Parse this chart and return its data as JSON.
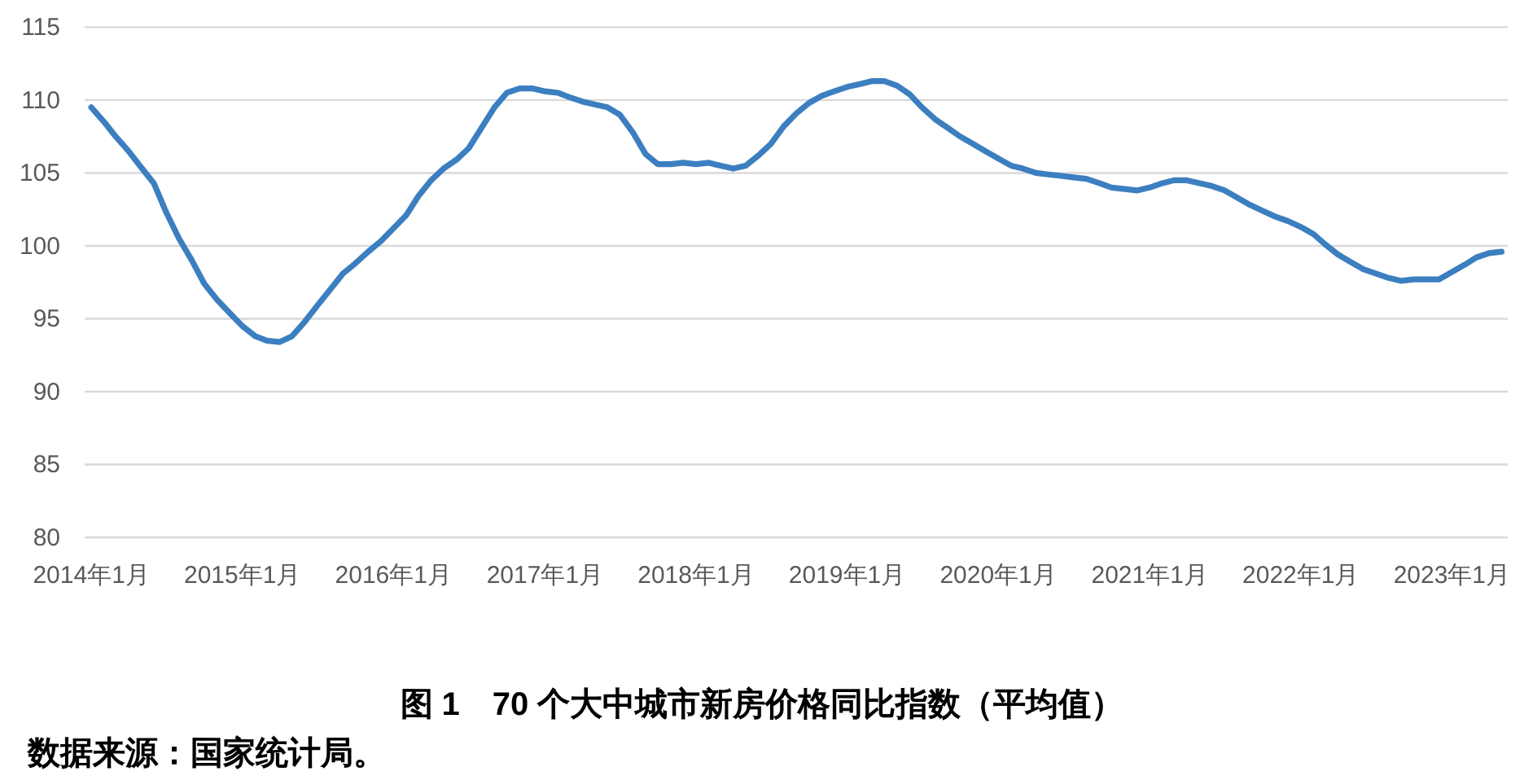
{
  "chart_data": {
    "type": "line",
    "title": "图 1　70 个大中城市新房价格同比指数（平均值）",
    "annotations": [
      "数据来源：国家统计局。"
    ],
    "x": [
      "2014-01",
      "2014-02",
      "2014-03",
      "2014-04",
      "2014-05",
      "2014-06",
      "2014-07",
      "2014-08",
      "2014-09",
      "2014-10",
      "2014-11",
      "2014-12",
      "2015-01",
      "2015-02",
      "2015-03",
      "2015-04",
      "2015-05",
      "2015-06",
      "2015-07",
      "2015-08",
      "2015-09",
      "2015-10",
      "2015-11",
      "2015-12",
      "2016-01",
      "2016-02",
      "2016-03",
      "2016-04",
      "2016-05",
      "2016-06",
      "2016-07",
      "2016-08",
      "2016-09",
      "2016-10",
      "2016-11",
      "2016-12",
      "2017-01",
      "2017-02",
      "2017-03",
      "2017-04",
      "2017-05",
      "2017-06",
      "2017-07",
      "2017-08",
      "2017-09",
      "2017-10",
      "2017-11",
      "2017-12",
      "2018-01",
      "2018-02",
      "2018-03",
      "2018-04",
      "2018-05",
      "2018-06",
      "2018-07",
      "2018-08",
      "2018-09",
      "2018-10",
      "2018-11",
      "2018-12",
      "2019-01",
      "2019-02",
      "2019-03",
      "2019-04",
      "2019-05",
      "2019-06",
      "2019-07",
      "2019-08",
      "2019-09",
      "2019-10",
      "2019-11",
      "2019-12",
      "2020-01",
      "2020-02",
      "2020-03",
      "2020-04",
      "2020-05",
      "2020-06",
      "2020-07",
      "2020-08",
      "2020-09",
      "2020-10",
      "2020-11",
      "2020-12",
      "2021-01",
      "2021-02",
      "2021-03",
      "2021-04",
      "2021-05",
      "2021-06",
      "2021-07",
      "2021-08",
      "2021-09",
      "2021-10",
      "2021-11",
      "2021-12",
      "2022-01",
      "2022-02",
      "2022-03",
      "2022-04",
      "2022-05",
      "2022-06",
      "2022-07",
      "2022-08",
      "2022-09",
      "2022-10",
      "2022-11",
      "2022-12",
      "2023-01",
      "2023-02",
      "2023-03",
      "2023-04",
      "2023-05"
    ],
    "series": [
      {
        "color": "#3c7fc0",
        "values": [
          109.5,
          108.5,
          107.5,
          106.5,
          105.4,
          104.3,
          102.3,
          100.5,
          99.0,
          97.4,
          96.3,
          95.4,
          94.5,
          93.8,
          93.5,
          93.4,
          93.8,
          94.8,
          95.9,
          97.0,
          98.1,
          98.8,
          99.6,
          100.3,
          101.2,
          102.1,
          103.4,
          104.5,
          105.3,
          105.9,
          106.7,
          108.1,
          109.5,
          110.5,
          110.8,
          110.8,
          110.6,
          110.5,
          110.2,
          109.9,
          109.7,
          109.5,
          109.0,
          107.8,
          106.3,
          105.6,
          105.6,
          105.7,
          105.6,
          105.7,
          105.5,
          105.3,
          105.5,
          106.2,
          107.0,
          108.2,
          109.1,
          109.8,
          110.3,
          110.6,
          110.9,
          111.1,
          111.3,
          111.3,
          111.0,
          110.4,
          109.5,
          108.7,
          108.1,
          107.5,
          107.0,
          106.5,
          106.0,
          105.5,
          105.3,
          105.0,
          104.9,
          104.8,
          104.7,
          104.6,
          104.3,
          104.0,
          103.9,
          103.8,
          104.0,
          104.3,
          104.5,
          104.5,
          104.3,
          104.1,
          103.8,
          103.3,
          102.8,
          102.4,
          102.0,
          101.7,
          101.3,
          100.8,
          100.1,
          99.4,
          98.9,
          98.4,
          98.1,
          97.8,
          97.6,
          97.7,
          97.7,
          97.7,
          98.2,
          98.7,
          99.2,
          99.5,
          99.6
        ]
      }
    ],
    "xlim": [
      "2013-12-16",
      "2023-05-16"
    ],
    "xticks": [
      {
        "value": "2014-01",
        "label": "2014年1月"
      },
      {
        "value": "2015-01",
        "label": "2015年1月"
      },
      {
        "value": "2016-01",
        "label": "2016年1月"
      },
      {
        "value": "2017-01",
        "label": "2017年1月"
      },
      {
        "value": "2018-01",
        "label": "2018年1月"
      },
      {
        "value": "2019-01",
        "label": "2019年1月"
      },
      {
        "value": "2020-01",
        "label": "2020年1月"
      },
      {
        "value": "2021-01",
        "label": "2021年1月"
      },
      {
        "value": "2022-01",
        "label": "2022年1月"
      },
      {
        "value": "2023-01",
        "label": "2023年1月"
      }
    ],
    "ylim": [
      80,
      115
    ],
    "yticks": [
      80,
      85,
      90,
      95,
      100,
      105,
      110,
      115
    ],
    "grid": "y"
  }
}
